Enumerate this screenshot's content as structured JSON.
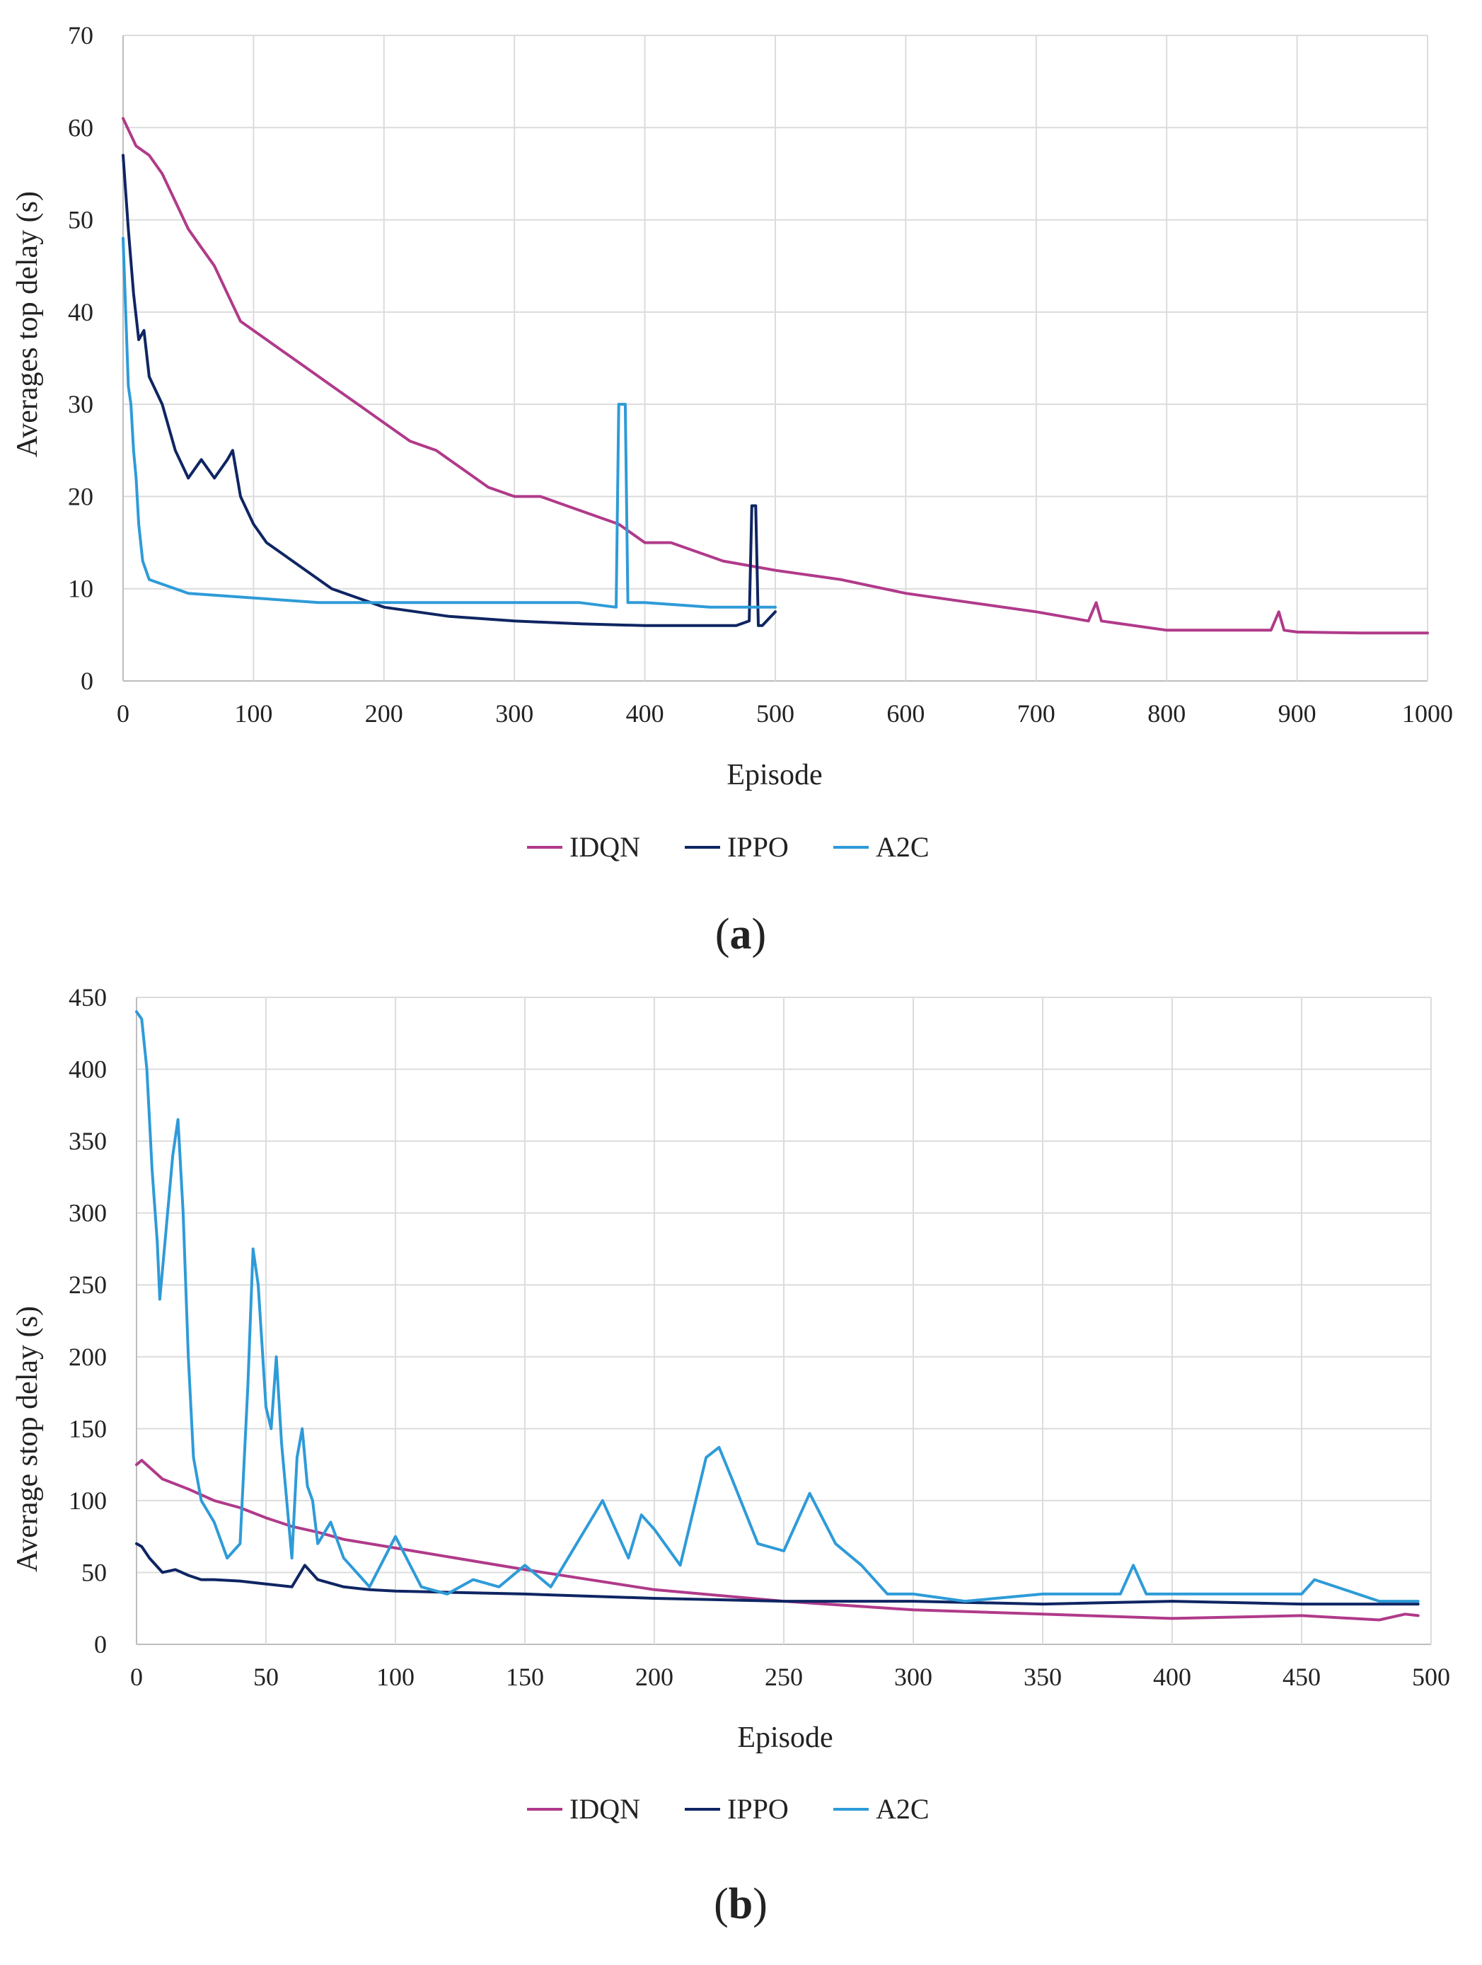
{
  "colors": {
    "IDQN": "#B03A8A",
    "IPPO": "#0F2563",
    "A2C": "#2E9BD8"
  },
  "chart_data": [
    {
      "id": "a",
      "panel_label": "a",
      "type": "line",
      "title": "",
      "xlabel": "Episode",
      "ylabel": "Averages top delay (s)",
      "xlim": [
        0,
        1000
      ],
      "ylim": [
        0,
        70
      ],
      "xticks": [
        0,
        100,
        200,
        300,
        400,
        500,
        600,
        700,
        800,
        900,
        1000
      ],
      "yticks": [
        0,
        10,
        20,
        30,
        40,
        50,
        60,
        70
      ],
      "grid": true,
      "legend": "bottom-center",
      "series": [
        {
          "name": "IDQN",
          "x": [
            0,
            10,
            20,
            30,
            40,
            50,
            60,
            70,
            80,
            90,
            100,
            120,
            140,
            160,
            180,
            200,
            220,
            240,
            260,
            280,
            300,
            320,
            340,
            360,
            380,
            400,
            420,
            440,
            460,
            480,
            500,
            550,
            600,
            650,
            700,
            740,
            746,
            750,
            760,
            800,
            850,
            880,
            886,
            890,
            900,
            950,
            1000
          ],
          "y": [
            61,
            58,
            57,
            55,
            52,
            49,
            47,
            45,
            42,
            39,
            38,
            36,
            34,
            32,
            30,
            28,
            26,
            25,
            23,
            21,
            20,
            20,
            19,
            18,
            17,
            15,
            15,
            14,
            13,
            12.5,
            12,
            11,
            9.5,
            8.5,
            7.5,
            6.5,
            8.5,
            6.5,
            6.3,
            5.5,
            5.5,
            5.5,
            7.5,
            5.5,
            5.3,
            5.2,
            5.2
          ]
        },
        {
          "name": "IPPO",
          "x": [
            0,
            4,
            8,
            12,
            16,
            20,
            30,
            40,
            50,
            60,
            70,
            80,
            84,
            90,
            100,
            110,
            120,
            140,
            160,
            180,
            200,
            250,
            300,
            350,
            400,
            450,
            470,
            480,
            482,
            485,
            487,
            490,
            500
          ],
          "y": [
            57,
            49,
            42,
            37,
            38,
            33,
            30,
            25,
            22,
            24,
            22,
            24,
            25,
            20,
            17,
            15,
            14,
            12,
            10,
            9,
            8,
            7,
            6.5,
            6.2,
            6,
            6,
            6,
            6.5,
            19,
            19,
            6,
            6,
            7.5
          ]
        },
        {
          "name": "A2C",
          "x": [
            0,
            2,
            4,
            6,
            8,
            10,
            12,
            15,
            20,
            30,
            50,
            100,
            150,
            200,
            250,
            300,
            350,
            378,
            380,
            385,
            387,
            400,
            450,
            500
          ],
          "y": [
            48,
            40,
            32,
            30,
            25,
            22,
            17,
            13,
            11,
            10.5,
            9.5,
            9,
            8.5,
            8.5,
            8.5,
            8.5,
            8.5,
            8,
            30,
            30,
            8.5,
            8.5,
            8,
            8
          ]
        }
      ]
    },
    {
      "id": "b",
      "panel_label": "b",
      "type": "line",
      "title": "",
      "xlabel": "Episode",
      "ylabel": "Average stop delay (s)",
      "xlim": [
        0,
        500
      ],
      "ylim": [
        0,
        450
      ],
      "xticks": [
        0,
        50,
        100,
        150,
        200,
        250,
        300,
        350,
        400,
        450,
        500
      ],
      "yticks": [
        0,
        50,
        100,
        150,
        200,
        250,
        300,
        350,
        400,
        450
      ],
      "grid": true,
      "legend": "bottom-center",
      "series": [
        {
          "name": "IDQN",
          "x": [
            0,
            2,
            10,
            20,
            30,
            40,
            50,
            60,
            70,
            80,
            100,
            150,
            200,
            250,
            300,
            350,
            400,
            450,
            480,
            490,
            495
          ],
          "y": [
            125,
            128,
            115,
            108,
            100,
            95,
            88,
            82,
            78,
            73,
            67,
            52,
            38,
            30,
            24,
            21,
            18,
            20,
            17,
            21,
            20
          ]
        },
        {
          "name": "IPPO",
          "x": [
            0,
            2,
            5,
            10,
            15,
            20,
            25,
            30,
            40,
            50,
            60,
            65,
            70,
            80,
            90,
            100,
            150,
            200,
            250,
            300,
            350,
            400,
            450,
            495
          ],
          "y": [
            70,
            68,
            60,
            50,
            52,
            48,
            45,
            45,
            44,
            42,
            40,
            55,
            45,
            40,
            38,
            37,
            35,
            32,
            30,
            30,
            28,
            30,
            28,
            28
          ]
        },
        {
          "name": "A2C",
          "x": [
            0,
            2,
            4,
            6,
            8,
            9,
            10,
            12,
            14,
            16,
            18,
            20,
            22,
            25,
            30,
            35,
            40,
            43,
            45,
            47,
            50,
            52,
            54,
            56,
            58,
            60,
            62,
            64,
            66,
            68,
            70,
            75,
            80,
            90,
            100,
            110,
            120,
            130,
            140,
            150,
            160,
            170,
            180,
            190,
            195,
            200,
            210,
            220,
            225,
            230,
            240,
            250,
            260,
            270,
            280,
            290,
            300,
            320,
            350,
            380,
            385,
            390,
            400,
            450,
            455,
            480,
            495
          ],
          "y": [
            440,
            435,
            400,
            330,
            280,
            240,
            260,
            300,
            340,
            365,
            300,
            200,
            130,
            100,
            85,
            60,
            70,
            180,
            275,
            250,
            165,
            150,
            200,
            140,
            100,
            60,
            130,
            150,
            110,
            100,
            70,
            85,
            60,
            40,
            75,
            40,
            35,
            45,
            40,
            55,
            40,
            70,
            100,
            60,
            90,
            80,
            55,
            130,
            137,
            115,
            70,
            65,
            105,
            70,
            55,
            35,
            35,
            30,
            35,
            35,
            55,
            35,
            35,
            35,
            45,
            30,
            30
          ]
        }
      ]
    }
  ]
}
